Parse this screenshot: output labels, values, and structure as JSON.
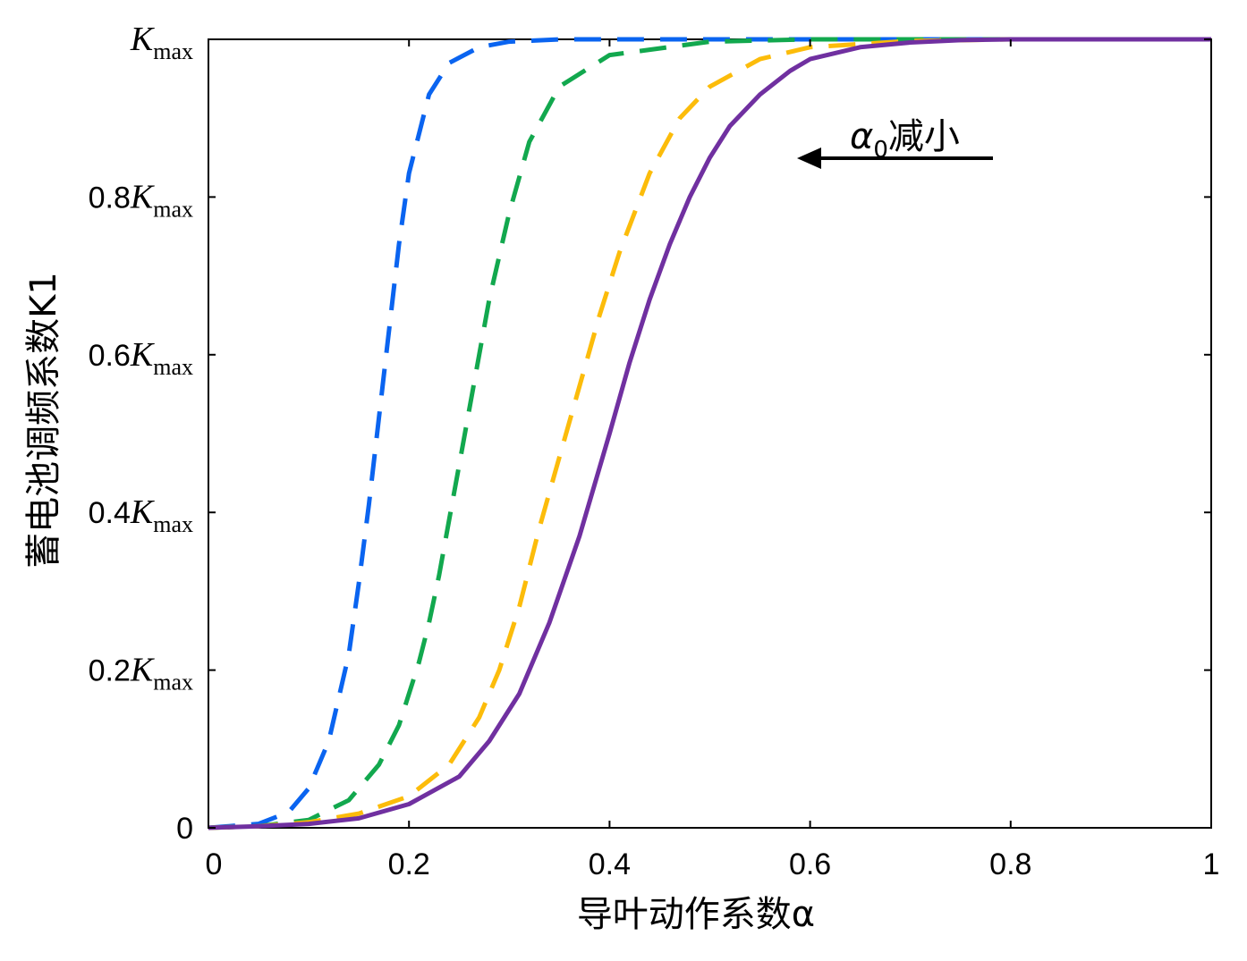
{
  "chart_data": {
    "type": "line",
    "xlabel": "导叶动作系数α",
    "ylabel": "蓄电池调频系数K1",
    "xlim": [
      0,
      1
    ],
    "ylim": [
      0,
      1
    ],
    "x_ticks": [
      "0",
      "0.2",
      "0.4",
      "0.6",
      "0.8",
      "1"
    ],
    "y_ticks": [
      {
        "prefix": "0",
        "k": "",
        "sub": ""
      },
      {
        "prefix": "0.2",
        "k": "K",
        "sub": "max"
      },
      {
        "prefix": "0.4",
        "k": "K",
        "sub": "max"
      },
      {
        "prefix": "0.6",
        "k": "K",
        "sub": "max"
      },
      {
        "prefix": "0.8",
        "k": "K",
        "sub": "max"
      },
      {
        "prefix": "",
        "k": "K",
        "sub": "max"
      }
    ],
    "grid": false,
    "annotation": {
      "symbol": "α",
      "sub": "0",
      "text": "减小",
      "arrow": "left"
    },
    "series": [
      {
        "color": "#0a64f0",
        "style": "dashed",
        "x": [
          0,
          0.05,
          0.08,
          0.1,
          0.12,
          0.14,
          0.15,
          0.16,
          0.17,
          0.18,
          0.19,
          0.2,
          0.22,
          0.24,
          0.27,
          0.3,
          0.35,
          1.0
        ],
        "y": [
          0,
          0.005,
          0.02,
          0.05,
          0.11,
          0.22,
          0.31,
          0.41,
          0.52,
          0.63,
          0.74,
          0.83,
          0.93,
          0.97,
          0.99,
          0.997,
          1,
          1
        ]
      },
      {
        "color": "#12a84e",
        "style": "dashed",
        "x": [
          0,
          0.05,
          0.1,
          0.14,
          0.17,
          0.19,
          0.21,
          0.22,
          0.23,
          0.24,
          0.25,
          0.26,
          0.27,
          0.28,
          0.3,
          0.32,
          0.35,
          0.4,
          0.5,
          0.6,
          1.0
        ],
        "y": [
          0,
          0.002,
          0.01,
          0.035,
          0.08,
          0.13,
          0.21,
          0.26,
          0.32,
          0.39,
          0.46,
          0.53,
          0.6,
          0.67,
          0.78,
          0.87,
          0.94,
          0.98,
          0.997,
          1,
          1
        ]
      },
      {
        "color": "#fcbc0a",
        "style": "dashed",
        "x": [
          0,
          0.05,
          0.1,
          0.15,
          0.2,
          0.24,
          0.27,
          0.29,
          0.31,
          0.33,
          0.35,
          0.37,
          0.39,
          0.41,
          0.44,
          0.47,
          0.5,
          0.55,
          0.6,
          0.7,
          0.8,
          1.0
        ],
        "y": [
          0,
          0.002,
          0.007,
          0.018,
          0.04,
          0.08,
          0.14,
          0.2,
          0.28,
          0.38,
          0.47,
          0.56,
          0.65,
          0.73,
          0.83,
          0.9,
          0.94,
          0.975,
          0.99,
          0.998,
          1,
          1
        ]
      },
      {
        "color": "#7030a0",
        "style": "solid",
        "x": [
          0,
          0.05,
          0.1,
          0.15,
          0.2,
          0.25,
          0.28,
          0.31,
          0.34,
          0.37,
          0.4,
          0.42,
          0.44,
          0.46,
          0.48,
          0.5,
          0.52,
          0.55,
          0.58,
          0.6,
          0.65,
          0.7,
          0.75,
          0.8,
          0.9,
          1.0
        ],
        "y": [
          0,
          0.002,
          0.005,
          0.012,
          0.03,
          0.065,
          0.11,
          0.17,
          0.26,
          0.37,
          0.5,
          0.59,
          0.67,
          0.74,
          0.8,
          0.85,
          0.89,
          0.93,
          0.96,
          0.975,
          0.99,
          0.996,
          0.999,
          1,
          1,
          1
        ]
      }
    ]
  }
}
